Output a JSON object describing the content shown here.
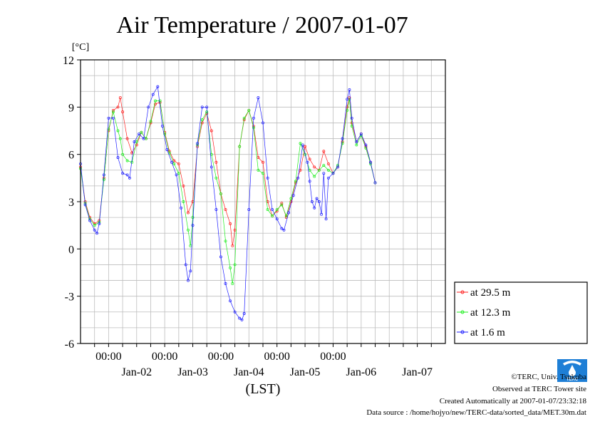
{
  "chart_data": {
    "type": "line",
    "title": "Air Temperature / 2007-01-07",
    "ylabel": "[°C]",
    "xlabel": "(LST)",
    "ylim": [
      -6,
      12
    ],
    "yticks": [
      "12",
      "9",
      "6",
      "3",
      "0",
      "-3",
      "-6"
    ],
    "xlim": [
      "2007-01-01T12:00",
      "2007-01-07T24:00"
    ],
    "time_labels": [
      "00:00",
      "00:00",
      "00:00",
      "00:00",
      "00:00"
    ],
    "date_labels": [
      "Jan-02",
      "Jan-03",
      "Jan-04",
      "Jan-05",
      "Jan-06",
      "Jan-07"
    ],
    "grid": true,
    "legend_position": "right",
    "series": [
      {
        "name": "at 29.5 m",
        "color": "#ff2020",
        "points": [
          [
            "2007-01-01T12:00",
            5.2
          ],
          [
            "2007-01-01T14:00",
            3.0
          ],
          [
            "2007-01-01T16:00",
            2.0
          ],
          [
            "2007-01-01T18:00",
            1.6
          ],
          [
            "2007-01-01T20:00",
            1.8
          ],
          [
            "2007-01-01T22:00",
            4.5
          ],
          [
            "2007-01-02T00:00",
            7.5
          ],
          [
            "2007-01-02T02:00",
            8.8
          ],
          [
            "2007-01-02T04:00",
            9.0
          ],
          [
            "2007-01-02T05:00",
            9.6
          ],
          [
            "2007-01-02T06:00",
            8.7
          ],
          [
            "2007-01-02T08:00",
            7.0
          ],
          [
            "2007-01-02T10:00",
            6.1
          ],
          [
            "2007-01-02T12:00",
            6.6
          ],
          [
            "2007-01-02T14:00",
            7.4
          ],
          [
            "2007-01-02T16:00",
            7.0
          ],
          [
            "2007-01-02T18:00",
            8.0
          ],
          [
            "2007-01-02T20:00",
            9.2
          ],
          [
            "2007-01-02T22:00",
            9.3
          ],
          [
            "2007-01-03T00:00",
            7.4
          ],
          [
            "2007-01-03T02:00",
            6.2
          ],
          [
            "2007-01-03T04:00",
            5.6
          ],
          [
            "2007-01-03T06:00",
            5.4
          ],
          [
            "2007-01-03T08:00",
            4.0
          ],
          [
            "2007-01-03T10:00",
            2.3
          ],
          [
            "2007-01-03T12:00",
            3.0
          ],
          [
            "2007-01-03T14:00",
            6.5
          ],
          [
            "2007-01-03T16:00",
            8.0
          ],
          [
            "2007-01-03T18:00",
            8.6
          ],
          [
            "2007-01-03T20:00",
            7.5
          ],
          [
            "2007-01-03T22:00",
            5.5
          ],
          [
            "2007-01-04T00:00",
            3.5
          ],
          [
            "2007-01-04T02:00",
            2.5
          ],
          [
            "2007-01-04T04:00",
            1.6
          ],
          [
            "2007-01-04T05:00",
            0.2
          ],
          [
            "2007-01-04T06:00",
            1.2
          ],
          [
            "2007-01-04T08:00",
            6.5
          ],
          [
            "2007-01-04T10:00",
            8.2
          ],
          [
            "2007-01-04T12:00",
            8.8
          ],
          [
            "2007-01-04T14:00",
            7.8
          ],
          [
            "2007-01-04T16:00",
            5.8
          ],
          [
            "2007-01-04T18:00",
            5.5
          ],
          [
            "2007-01-04T20:00",
            3.0
          ],
          [
            "2007-01-04T22:00",
            2.1
          ],
          [
            "2007-01-05T00:00",
            2.4
          ],
          [
            "2007-01-05T02:00",
            2.9
          ],
          [
            "2007-01-05T04:00",
            2.0
          ],
          [
            "2007-01-05T06:00",
            3.0
          ],
          [
            "2007-01-05T08:00",
            4.2
          ],
          [
            "2007-01-05T10:00",
            5.0
          ],
          [
            "2007-01-05T12:00",
            6.5
          ],
          [
            "2007-01-05T14:00",
            5.7
          ],
          [
            "2007-01-05T16:00",
            5.2
          ],
          [
            "2007-01-05T18:00",
            5.0
          ],
          [
            "2007-01-05T20:00",
            6.2
          ],
          [
            "2007-01-05T22:00",
            5.4
          ],
          [
            "2007-01-06T00:00",
            4.8
          ],
          [
            "2007-01-06T02:00",
            5.2
          ],
          [
            "2007-01-06T04:00",
            6.8
          ],
          [
            "2007-01-06T06:00",
            9.0
          ],
          [
            "2007-01-06T07:00",
            9.6
          ],
          [
            "2007-01-06T08:00",
            8.0
          ],
          [
            "2007-01-06T10:00",
            6.8
          ],
          [
            "2007-01-06T12:00",
            7.3
          ],
          [
            "2007-01-06T14:00",
            6.5
          ],
          [
            "2007-01-06T16:00",
            5.5
          ],
          [
            "2007-01-06T18:00",
            4.2
          ]
        ]
      },
      {
        "name": "at 12.3 m",
        "color": "#20ee20",
        "points": [
          [
            "2007-01-01T12:00",
            5.1
          ],
          [
            "2007-01-01T14:00",
            2.9
          ],
          [
            "2007-01-01T16:00",
            1.9
          ],
          [
            "2007-01-01T18:00",
            1.5
          ],
          [
            "2007-01-01T20:00",
            1.7
          ],
          [
            "2007-01-01T22:00",
            4.4
          ],
          [
            "2007-01-02T00:00",
            7.6
          ],
          [
            "2007-01-02T02:00",
            8.7
          ],
          [
            "2007-01-02T04:00",
            7.5
          ],
          [
            "2007-01-02T05:00",
            7.0
          ],
          [
            "2007-01-02T06:00",
            6.0
          ],
          [
            "2007-01-02T08:00",
            5.6
          ],
          [
            "2007-01-02T10:00",
            5.5
          ],
          [
            "2007-01-02T12:00",
            6.8
          ],
          [
            "2007-01-02T14:00",
            7.4
          ],
          [
            "2007-01-02T16:00",
            7.0
          ],
          [
            "2007-01-02T18:00",
            8.1
          ],
          [
            "2007-01-02T20:00",
            9.4
          ],
          [
            "2007-01-02T22:00",
            9.4
          ],
          [
            "2007-01-03T00:00",
            7.3
          ],
          [
            "2007-01-03T02:00",
            6.1
          ],
          [
            "2007-01-03T04:00",
            5.4
          ],
          [
            "2007-01-03T06:00",
            4.8
          ],
          [
            "2007-01-03T08:00",
            3.0
          ],
          [
            "2007-01-03T10:00",
            1.2
          ],
          [
            "2007-01-03T11:00",
            0.2
          ],
          [
            "2007-01-03T12:00",
            2.0
          ],
          [
            "2007-01-03T14:00",
            6.6
          ],
          [
            "2007-01-03T16:00",
            8.2
          ],
          [
            "2007-01-03T18:00",
            8.7
          ],
          [
            "2007-01-03T20:00",
            6.0
          ],
          [
            "2007-01-03T22:00",
            4.5
          ],
          [
            "2007-01-04T00:00",
            3.5
          ],
          [
            "2007-01-04T02:00",
            0.5
          ],
          [
            "2007-01-04T04:00",
            -1.2
          ],
          [
            "2007-01-04T05:00",
            -2.2
          ],
          [
            "2007-01-04T06:00",
            -1.0
          ],
          [
            "2007-01-04T08:00",
            6.5
          ],
          [
            "2007-01-04T10:00",
            8.3
          ],
          [
            "2007-01-04T12:00",
            8.8
          ],
          [
            "2007-01-04T14:00",
            7.7
          ],
          [
            "2007-01-04T16:00",
            5.0
          ],
          [
            "2007-01-04T18:00",
            4.8
          ],
          [
            "2007-01-04T20:00",
            2.5
          ],
          [
            "2007-01-04T22:00",
            2.1
          ],
          [
            "2007-01-05T00:00",
            2.5
          ],
          [
            "2007-01-05T02:00",
            2.8
          ],
          [
            "2007-01-05T04:00",
            2.1
          ],
          [
            "2007-01-05T06:00",
            3.2
          ],
          [
            "2007-01-05T08:00",
            4.3
          ],
          [
            "2007-01-05T10:00",
            6.7
          ],
          [
            "2007-01-05T12:00",
            6.0
          ],
          [
            "2007-01-05T14:00",
            5.0
          ],
          [
            "2007-01-05T16:00",
            4.6
          ],
          [
            "2007-01-05T18:00",
            5.0
          ],
          [
            "2007-01-05T20:00",
            5.3
          ],
          [
            "2007-01-05T22:00",
            5.0
          ],
          [
            "2007-01-06T00:00",
            4.8
          ],
          [
            "2007-01-06T02:00",
            5.3
          ],
          [
            "2007-01-06T04:00",
            6.7
          ],
          [
            "2007-01-06T06:00",
            8.8
          ],
          [
            "2007-01-06T07:00",
            9.5
          ],
          [
            "2007-01-06T08:00",
            7.8
          ],
          [
            "2007-01-06T10:00",
            6.6
          ],
          [
            "2007-01-06T12:00",
            7.2
          ],
          [
            "2007-01-06T14:00",
            6.4
          ],
          [
            "2007-01-06T16:00",
            5.4
          ],
          [
            "2007-01-06T18:00",
            4.2
          ]
        ]
      },
      {
        "name": "at 1.6 m",
        "color": "#2020ff",
        "points": [
          [
            "2007-01-01T12:00",
            5.4
          ],
          [
            "2007-01-01T14:00",
            2.8
          ],
          [
            "2007-01-01T16:00",
            1.8
          ],
          [
            "2007-01-01T18:00",
            1.2
          ],
          [
            "2007-01-01T19:00",
            1.0
          ],
          [
            "2007-01-01T20:00",
            1.6
          ],
          [
            "2007-01-01T22:00",
            4.7
          ],
          [
            "2007-01-02T00:00",
            8.3
          ],
          [
            "2007-01-02T02:00",
            8.3
          ],
          [
            "2007-01-02T04:00",
            5.8
          ],
          [
            "2007-01-02T06:00",
            4.8
          ],
          [
            "2007-01-02T08:00",
            4.7
          ],
          [
            "2007-01-02T09:00",
            4.5
          ],
          [
            "2007-01-02T11:00",
            6.8
          ],
          [
            "2007-01-02T13:00",
            7.3
          ],
          [
            "2007-01-02T15:00",
            7.0
          ],
          [
            "2007-01-02T17:00",
            9.0
          ],
          [
            "2007-01-02T19:00",
            9.8
          ],
          [
            "2007-01-02T21:00",
            10.3
          ],
          [
            "2007-01-02T23:00",
            7.8
          ],
          [
            "2007-01-03T01:00",
            6.3
          ],
          [
            "2007-01-03T03:00",
            5.5
          ],
          [
            "2007-01-03T05:00",
            4.7
          ],
          [
            "2007-01-03T07:00",
            2.6
          ],
          [
            "2007-01-03T09:00",
            -1.0
          ],
          [
            "2007-01-03T10:00",
            -2.0
          ],
          [
            "2007-01-03T11:00",
            -1.4
          ],
          [
            "2007-01-03T12:00",
            1.5
          ],
          [
            "2007-01-03T14:00",
            6.7
          ],
          [
            "2007-01-03T16:00",
            9.0
          ],
          [
            "2007-01-03T18:00",
            9.0
          ],
          [
            "2007-01-03T20:00",
            5.2
          ],
          [
            "2007-01-03T22:00",
            2.5
          ],
          [
            "2007-01-04T00:00",
            -0.5
          ],
          [
            "2007-01-04T02:00",
            -2.2
          ],
          [
            "2007-01-04T04:00",
            -3.3
          ],
          [
            "2007-01-04T06:00",
            -4.0
          ],
          [
            "2007-01-04T08:00",
            -4.4
          ],
          [
            "2007-01-04T09:00",
            -4.5
          ],
          [
            "2007-01-04T10:00",
            -4.1
          ],
          [
            "2007-01-04T12:00",
            2.5
          ],
          [
            "2007-01-04T14:00",
            8.3
          ],
          [
            "2007-01-04T16:00",
            9.6
          ],
          [
            "2007-01-04T18:00",
            8.0
          ],
          [
            "2007-01-04T20:00",
            4.5
          ],
          [
            "2007-01-04T22:00",
            2.5
          ],
          [
            "2007-01-05T00:00",
            1.9
          ],
          [
            "2007-01-05T02:00",
            1.3
          ],
          [
            "2007-01-05T03:00",
            1.2
          ],
          [
            "2007-01-05T05:00",
            2.3
          ],
          [
            "2007-01-05T07:00",
            3.4
          ],
          [
            "2007-01-05T09:00",
            4.5
          ],
          [
            "2007-01-05T11:00",
            6.6
          ],
          [
            "2007-01-05T13:00",
            5.5
          ],
          [
            "2007-01-05T14:00",
            4.3
          ],
          [
            "2007-01-05T15:00",
            3.0
          ],
          [
            "2007-01-05T16:00",
            2.6
          ],
          [
            "2007-01-05T17:00",
            3.2
          ],
          [
            "2007-01-05T18:00",
            3.0
          ],
          [
            "2007-01-05T19:00",
            2.2
          ],
          [
            "2007-01-05T20:00",
            4.8
          ],
          [
            "2007-01-05T21:00",
            1.9
          ],
          [
            "2007-01-05T22:00",
            4.5
          ],
          [
            "2007-01-06T00:00",
            4.8
          ],
          [
            "2007-01-06T02:00",
            5.2
          ],
          [
            "2007-01-06T04:00",
            7.0
          ],
          [
            "2007-01-06T06:00",
            9.5
          ],
          [
            "2007-01-06T07:00",
            10.1
          ],
          [
            "2007-01-06T08:00",
            8.3
          ],
          [
            "2007-01-06T10:00",
            6.8
          ],
          [
            "2007-01-06T12:00",
            7.3
          ],
          [
            "2007-01-06T14:00",
            6.6
          ],
          [
            "2007-01-06T16:00",
            5.5
          ],
          [
            "2007-01-06T18:00",
            4.2
          ]
        ]
      }
    ]
  },
  "footer": {
    "logo_text": "TERC",
    "copyright": "©TERC, Univ. Tsukuba",
    "observed": "Observed at TERC Tower site",
    "created": "Created Automatically at 2007-01-07/23:32:18",
    "source": "Data source : /home/hojyo/new/TERC-data/sorted_data/MET.30m.dat"
  }
}
